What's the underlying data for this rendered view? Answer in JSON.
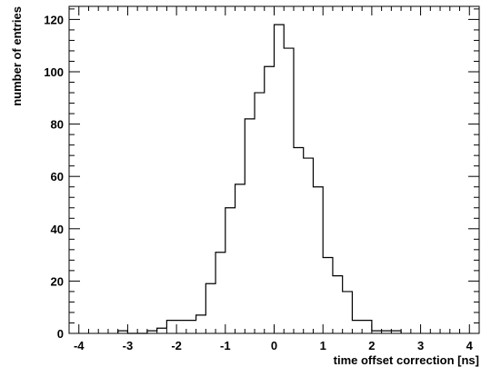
{
  "chart_data": {
    "type": "bar",
    "style": "step-histogram",
    "title": "",
    "xlabel": "time offset correction [ns]",
    "ylabel": "number of entries",
    "xlim": [
      -4.2,
      4.2
    ],
    "ylim": [
      0,
      125
    ],
    "bin_width": 0.2,
    "grid": false,
    "legend": "none",
    "x_ticks": [
      -4,
      -3,
      -2,
      -1,
      0,
      1,
      2,
      3,
      4
    ],
    "x_tick_labels": [
      "-4",
      "-3",
      "-2",
      "-1",
      "0",
      "1",
      "2",
      "3",
      "4"
    ],
    "y_ticks": [
      0,
      20,
      40,
      60,
      80,
      100,
      120
    ],
    "y_tick_labels": [
      "0",
      "20",
      "40",
      "60",
      "80",
      "100",
      "120"
    ],
    "bins": [
      {
        "x": -3.1,
        "value": 1
      },
      {
        "x": -2.9,
        "value": 0
      },
      {
        "x": -2.7,
        "value": 0
      },
      {
        "x": -2.5,
        "value": 1
      },
      {
        "x": -2.3,
        "value": 2
      },
      {
        "x": -2.1,
        "value": 5
      },
      {
        "x": -1.9,
        "value": 5
      },
      {
        "x": -1.7,
        "value": 5
      },
      {
        "x": -1.5,
        "value": 7
      },
      {
        "x": -1.3,
        "value": 19
      },
      {
        "x": -1.1,
        "value": 31
      },
      {
        "x": -0.9,
        "value": 48
      },
      {
        "x": -0.7,
        "value": 57
      },
      {
        "x": -0.5,
        "value": 82
      },
      {
        "x": -0.3,
        "value": 92
      },
      {
        "x": -0.1,
        "value": 102
      },
      {
        "x": 0.1,
        "value": 118
      },
      {
        "x": 0.3,
        "value": 109
      },
      {
        "x": 0.5,
        "value": 71
      },
      {
        "x": 0.7,
        "value": 67
      },
      {
        "x": 0.9,
        "value": 56
      },
      {
        "x": 1.1,
        "value": 29
      },
      {
        "x": 1.3,
        "value": 22
      },
      {
        "x": 1.5,
        "value": 16
      },
      {
        "x": 1.7,
        "value": 5
      },
      {
        "x": 1.9,
        "value": 5
      },
      {
        "x": 2.1,
        "value": 1
      },
      {
        "x": 2.3,
        "value": 1
      },
      {
        "x": 2.5,
        "value": 1
      }
    ],
    "colors": {
      "line": "#000000",
      "background": "#ffffff"
    }
  }
}
